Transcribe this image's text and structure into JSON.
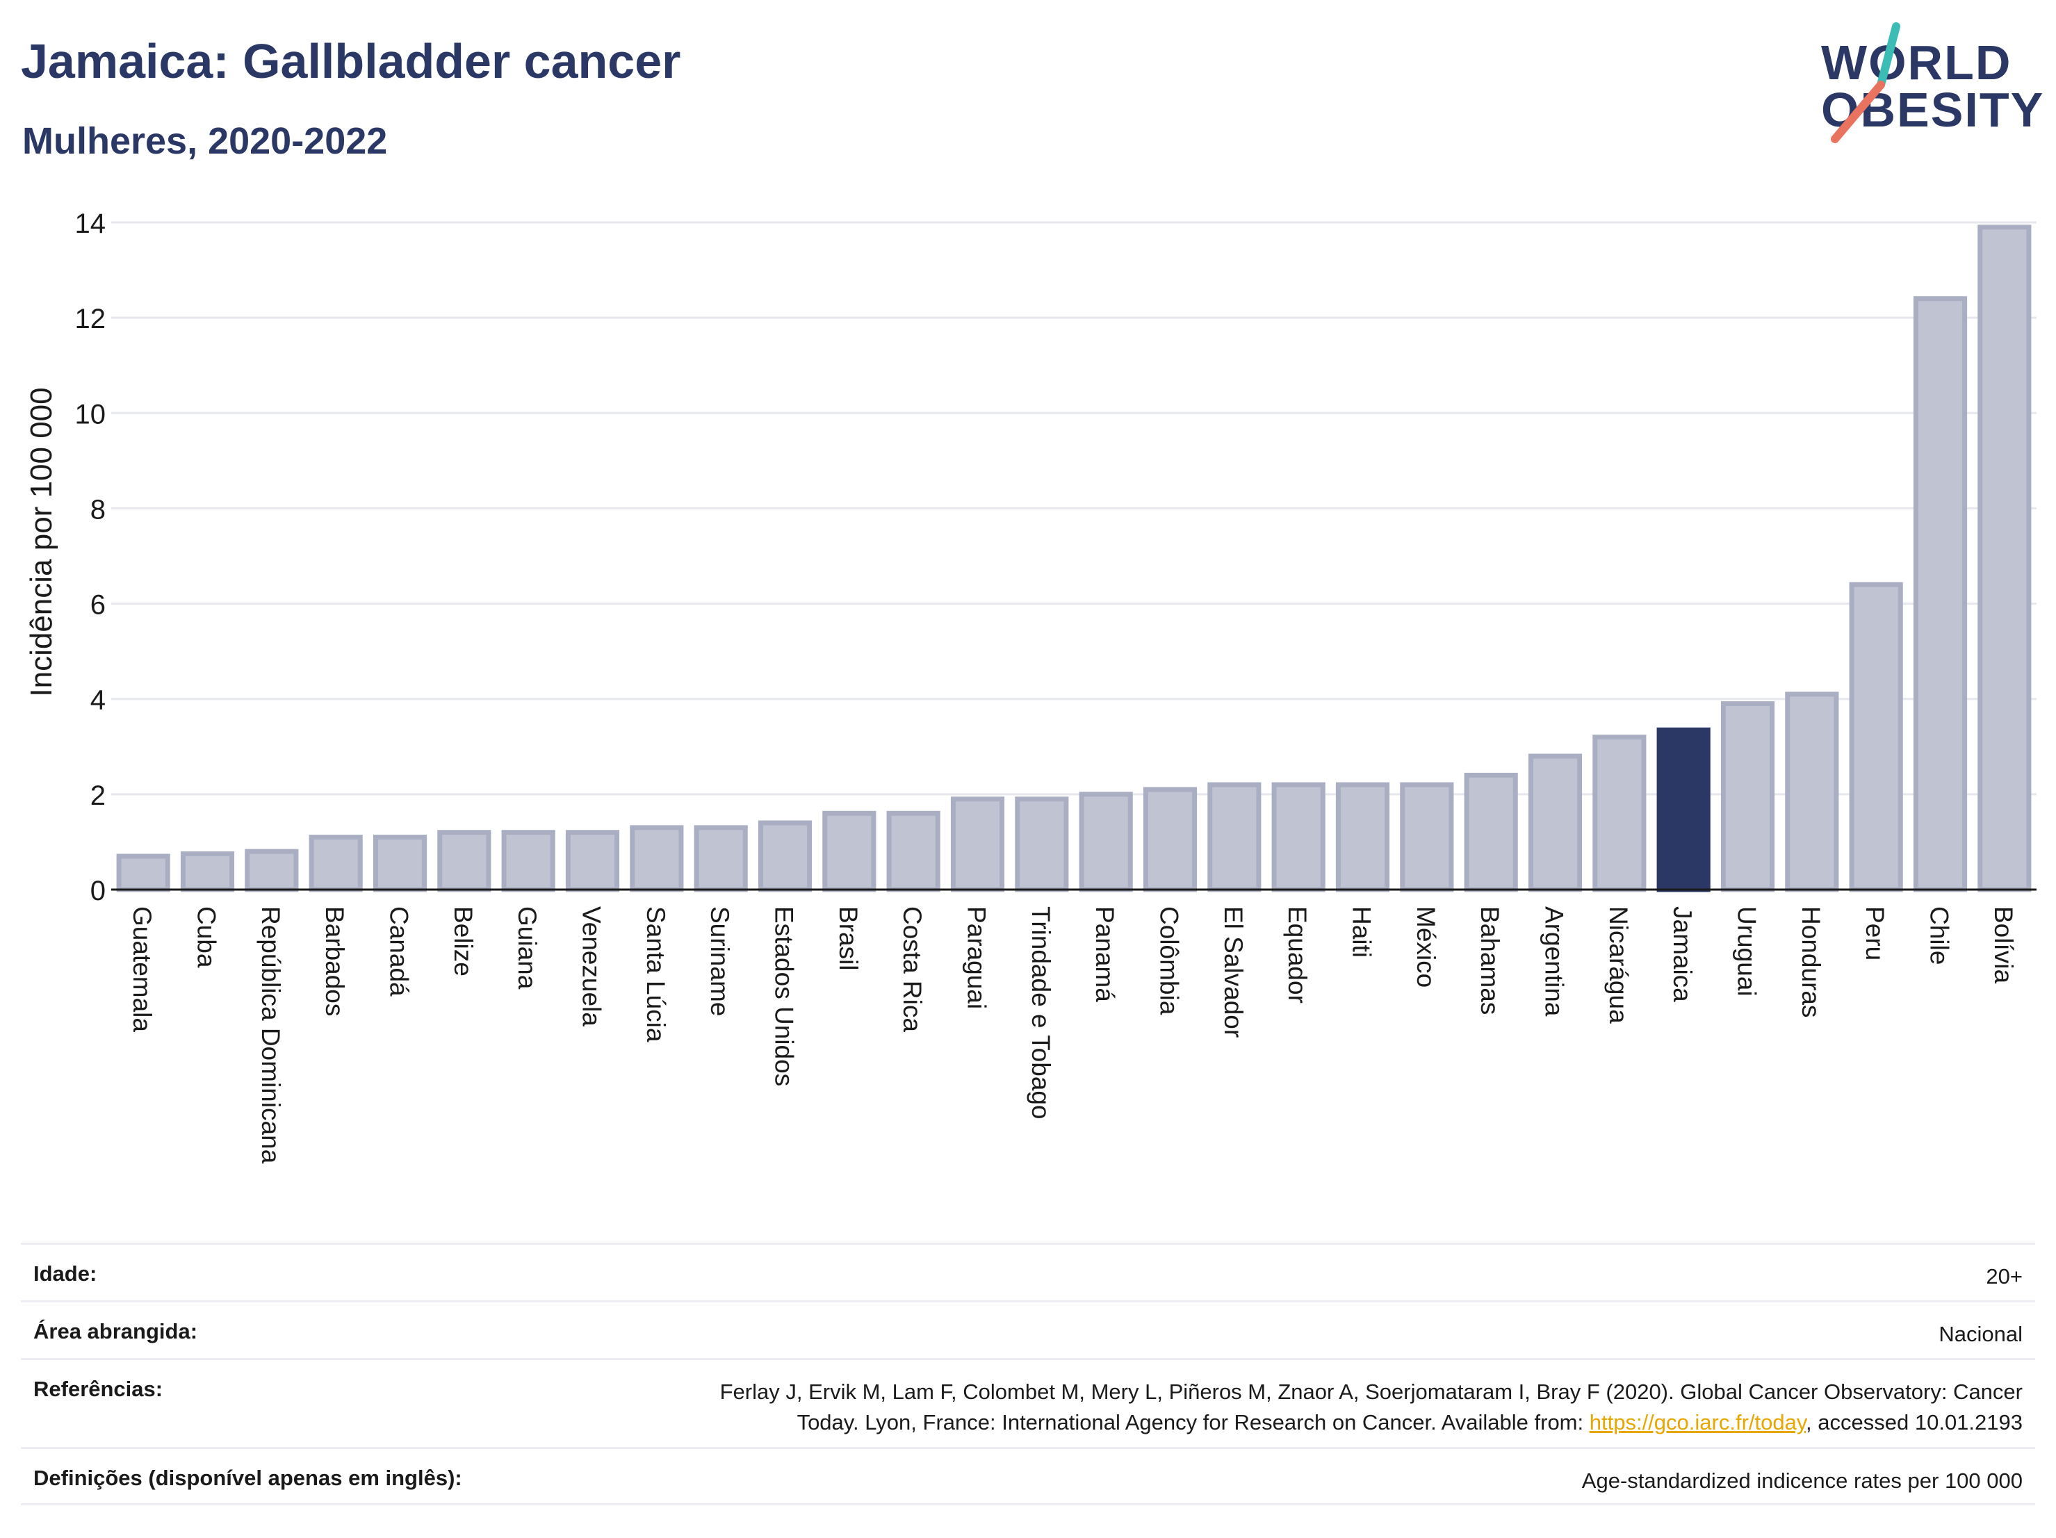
{
  "header": {
    "title": "Jamaica: Gallbladder cancer",
    "subtitle": "Mulheres, 2020-2022"
  },
  "logo": {
    "line1": "WORLD",
    "line2": "OBESITY"
  },
  "chart_data": {
    "type": "bar",
    "ylabel": "Incidência por 100 000",
    "xlabel": "",
    "ylim": [
      0,
      14
    ],
    "yticks": [
      0,
      2,
      4,
      6,
      8,
      10,
      12,
      14
    ],
    "grid": true,
    "highlight": "Jamaica",
    "categories": [
      "Guatemala",
      "Cuba",
      "República Dominicana",
      "Barbados",
      "Canadá",
      "Belize",
      "Guiana",
      "Venezuela",
      "Santa Lúcia",
      "Suriname",
      "Estados Unidos",
      "Brasil",
      "Costa Rica",
      "Paraguai",
      "Trindade e Tobago",
      "Panamá",
      "Colômbia",
      "El Salvador",
      "Equador",
      "Haiti",
      "México",
      "Bahamas",
      "Argentina",
      "Nicarágua",
      "Jamaica",
      "Uruguai",
      "Honduras",
      "Peru",
      "Chile",
      "Bolívia"
    ],
    "values": [
      0.7,
      0.75,
      0.8,
      1.1,
      1.1,
      1.2,
      1.2,
      1.2,
      1.3,
      1.3,
      1.4,
      1.6,
      1.6,
      1.9,
      1.9,
      2.0,
      2.1,
      2.2,
      2.2,
      2.2,
      2.2,
      2.4,
      2.8,
      3.2,
      3.35,
      3.9,
      4.1,
      6.4,
      12.4,
      13.9
    ]
  },
  "colors": {
    "bar_fill": "#c0c4d2",
    "bar_stroke": "#a9aec3",
    "highlight": "#2b3765",
    "grid": "#e6e8ee",
    "logo_teal": "#3bbdb5",
    "logo_coral": "#e8735f",
    "link": "#e8a700"
  },
  "info": {
    "age_label": "Idade:",
    "age_value": "20+",
    "area_label": "Área abrangida:",
    "area_value": "Nacional",
    "refs_label": "Referências:",
    "refs_line1": "Ferlay J, Ervik M, Lam F, Colombet M, Mery L, Piñeros M, Znaor A, Soerjomataram I, Bray F (2020). Global Cancer Observatory: Cancer",
    "refs_line2a": "Today. Lyon, France: International Agency for Research on Cancer. Available from: ",
    "refs_link": "https://gco.iarc.fr/today",
    "refs_line2b": ", accessed 10.01.2193",
    "defs_label": "Definições (disponível apenas em inglês):",
    "defs_value": "Age-standardized indicence rates per 100 000"
  }
}
